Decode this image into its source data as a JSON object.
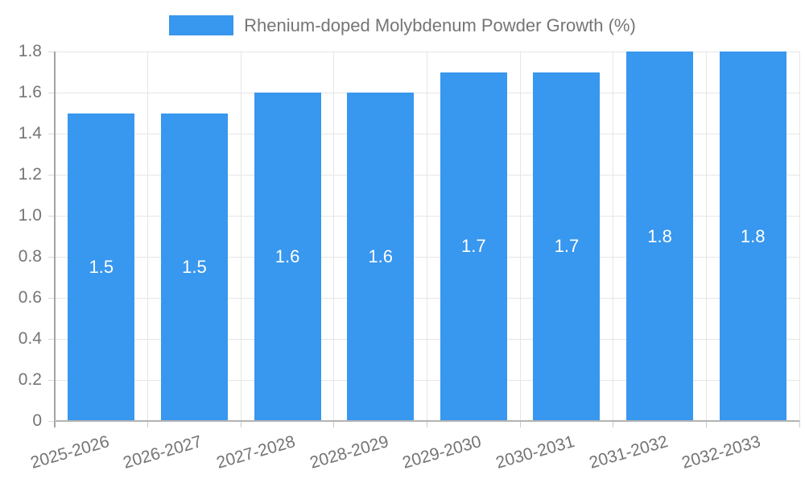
{
  "legend": {
    "label": "Rhenium-doped Molybdenum Powder Growth (%)"
  },
  "colors": {
    "bar": "#3897ee",
    "axis_text": "#757575",
    "value_label": "#ffffff",
    "grid": "#e6e6e6",
    "axis_line": "#a3a3a3",
    "baseline": "#b3b3b3",
    "background": "#ffffff"
  },
  "chart_data": {
    "type": "bar",
    "title": "Rhenium-doped Molybdenum Powder Growth (%)",
    "categories": [
      "2025-2026",
      "2026-2027",
      "2027-2028",
      "2028-2029",
      "2029-2030",
      "2030-2031",
      "2031-2032",
      "2032-2033"
    ],
    "values": [
      1.5,
      1.5,
      1.6,
      1.6,
      1.7,
      1.7,
      1.8,
      1.8
    ],
    "value_labels": [
      "1.5",
      "1.5",
      "1.6",
      "1.6",
      "1.7",
      "1.7",
      "1.8",
      "1.8"
    ],
    "xlabel": "",
    "ylabel": "",
    "ylim": [
      0,
      1.8
    ],
    "ytick_step": 0.2,
    "ytick_labels": [
      "0",
      "0.2",
      "0.4",
      "0.6",
      "0.8",
      "1.0",
      "1.2",
      "1.4",
      "1.6",
      "1.8"
    ],
    "grid": true,
    "legend_position": "top",
    "bar_label_position": "center"
  }
}
